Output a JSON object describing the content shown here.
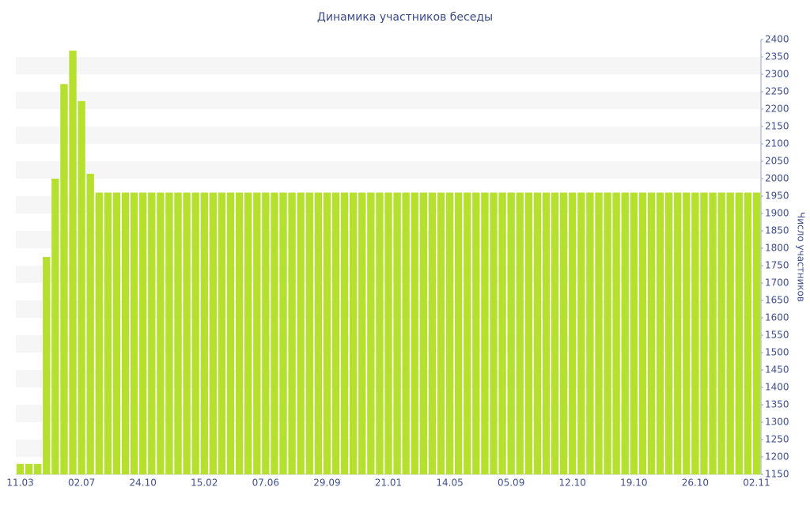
{
  "chart_data": {
    "type": "bar",
    "title": "Динамика участников беседы",
    "y_axis_label": "Число участников",
    "categories": [
      "11.03",
      null,
      null,
      null,
      null,
      null,
      null,
      "02.07",
      null,
      null,
      null,
      null,
      null,
      null,
      "24.10",
      null,
      null,
      null,
      null,
      null,
      null,
      "15.02",
      null,
      null,
      null,
      null,
      null,
      null,
      "07.06",
      null,
      null,
      null,
      null,
      null,
      null,
      "29.09",
      null,
      null,
      null,
      null,
      null,
      null,
      "21.01",
      null,
      null,
      null,
      null,
      null,
      null,
      "14.05",
      null,
      null,
      null,
      null,
      null,
      null,
      "05.09",
      null,
      null,
      null,
      null,
      null,
      null,
      "12.10",
      null,
      null,
      null,
      null,
      null,
      null,
      "19.10",
      null,
      null,
      null,
      null,
      null,
      null,
      "26.10",
      null,
      null,
      null,
      null,
      null,
      null,
      "02.11"
    ],
    "values": [
      1180,
      1180,
      1180,
      1775,
      2000,
      2272,
      2368,
      2223,
      2014,
      1960,
      1960,
      1960,
      1960,
      1960,
      1960,
      1960,
      1960,
      1960,
      1960,
      1960,
      1960,
      1960,
      1960,
      1960,
      1960,
      1960,
      1960,
      1960,
      1960,
      1960,
      1960,
      1960,
      1960,
      1960,
      1960,
      1960,
      1960,
      1960,
      1960,
      1960,
      1960,
      1960,
      1960,
      1960,
      1960,
      1960,
      1960,
      1960,
      1960,
      1960,
      1960,
      1960,
      1960,
      1960,
      1960,
      1960,
      1960,
      1960,
      1960,
      1960,
      1960,
      1960,
      1960,
      1960,
      1960,
      1960,
      1960,
      1960,
      1960,
      1960,
      1960,
      1960,
      1960,
      1960,
      1960,
      1960,
      1960,
      1960,
      1960,
      1960,
      1960,
      1960,
      1960,
      1960,
      1960
    ],
    "color": "#b5e02d",
    "ylim": [
      1150,
      2400
    ],
    "yticks": [
      1150,
      1200,
      1250,
      1300,
      1350,
      1400,
      1450,
      1500,
      1550,
      1600,
      1650,
      1700,
      1750,
      1800,
      1850,
      1900,
      1950,
      2000,
      2050,
      2100,
      2150,
      2200,
      2250,
      2300,
      2350,
      2400
    ],
    "y_axis_side": "right",
    "grid": true
  }
}
